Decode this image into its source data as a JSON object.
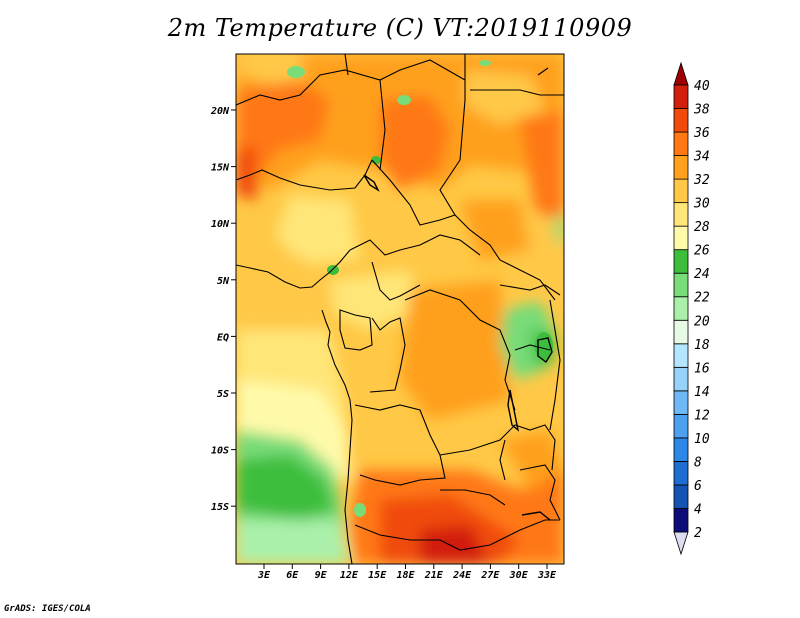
{
  "title": "2m Temperature (C) VT:2019110909",
  "credit": "GrADS: IGES/COLA",
  "lon_ticks": [
    "3E",
    "6E",
    "9E",
    "12E",
    "15E",
    "18E",
    "21E",
    "24E",
    "27E",
    "30E",
    "33E"
  ],
  "lat_ticks": [
    "20N",
    "15N",
    "10N",
    "5N",
    "EQ",
    "5S",
    "10S",
    "15S"
  ],
  "colorbar": {
    "levels": [
      "2",
      "4",
      "6",
      "8",
      "10",
      "12",
      "14",
      "16",
      "18",
      "20",
      "22",
      "24",
      "26",
      "28",
      "30",
      "32",
      "34",
      "36",
      "38",
      "40"
    ],
    "colors": [
      "#dcdcf2",
      "#0d0d7a",
      "#1455b4",
      "#1e6ed2",
      "#2d87e6",
      "#4ba0f0",
      "#6eb9f5",
      "#96d2fa",
      "#b4e6ff",
      "#e6fae6",
      "#aaf0aa",
      "#78dc78",
      "#3cbe3c",
      "#fffaaa",
      "#ffe678",
      "#ffc846",
      "#ffa01e",
      "#ff7814",
      "#f04b0a",
      "#d21e0a",
      "#a00000"
    ]
  }
}
